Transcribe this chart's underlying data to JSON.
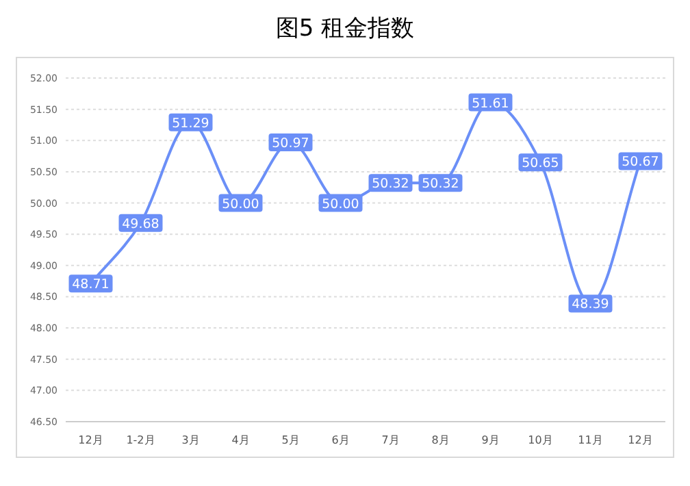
{
  "chart_data": {
    "type": "line",
    "title": "图5 租金指数",
    "categories": [
      "12月",
      "1-2月",
      "3月",
      "4月",
      "5月",
      "6月",
      "7月",
      "8月",
      "9月",
      "10月",
      "11月",
      "12月"
    ],
    "values": [
      48.71,
      49.68,
      51.29,
      50.0,
      50.97,
      50.0,
      50.32,
      50.32,
      51.61,
      50.65,
      48.39,
      50.67
    ],
    "color": "#6b8ff7",
    "ylim": [
      46.5,
      52
    ],
    "yticks": [
      {
        "value": 46.5,
        "label": "46.50"
      },
      {
        "value": 47,
        "label": "47.00"
      },
      {
        "value": 47.5,
        "label": "47.50"
      },
      {
        "value": 48,
        "label": "48.00"
      },
      {
        "value": 48.5,
        "label": "48.50"
      },
      {
        "value": 49,
        "label": "49.00"
      },
      {
        "value": 49.5,
        "label": "49.50"
      },
      {
        "value": 50,
        "label": "50.00"
      },
      {
        "value": 50.5,
        "label": "50.50"
      },
      {
        "value": 51,
        "label": "51.00"
      },
      {
        "value": 51.5,
        "label": "51.50"
      },
      {
        "value": 52,
        "label": "52.00"
      }
    ],
    "value_labels": [
      "48.71",
      "49.68",
      "51.29",
      "50.00",
      "50.97",
      "50.00",
      "50.32",
      "50.32",
      "51.61",
      "50.65",
      "48.39",
      "50.67"
    ],
    "marker": "square",
    "grid": "y"
  }
}
